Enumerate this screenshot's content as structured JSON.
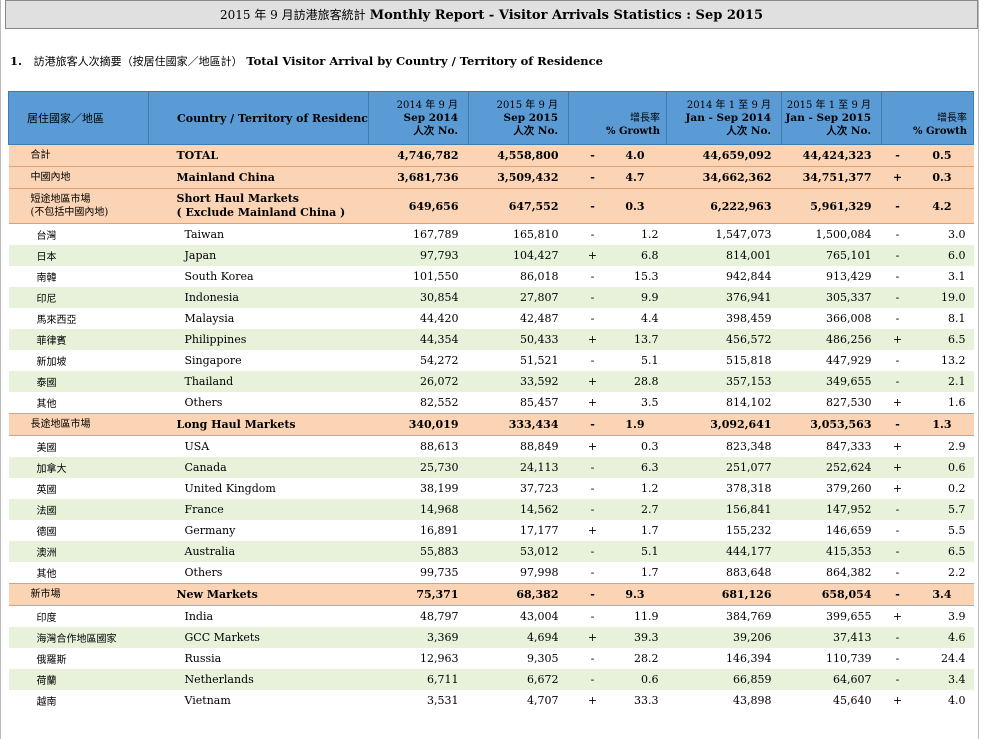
{
  "header": {
    "title_zh": "2015 年 9 月訪港旅客統計",
    "title_en": "Monthly Report - Visitor Arrivals Statistics : Sep 2015"
  },
  "section": {
    "number": "1.",
    "title_zh": "訪港旅客人次摘要（按居住國家／地區計）",
    "title_en": "Total Visitor Arrival by Country / Territory of Residence"
  },
  "table": {
    "headers": {
      "zh": "居住國家／地區",
      "en": "Country / Territory of Residence",
      "c1_zh": "2014 年 9 月",
      "c1_en": "Sep 2014",
      "c1_unit": "人次 No.",
      "c2_zh": "2015 年 9 月",
      "c2_en": "Sep 2015",
      "c2_unit": "人次 No.",
      "g1_zh": "增長率",
      "g1_en": "% Growth",
      "c3_zh": "2014 年 1 至 9 月",
      "c3_en": "Jan - Sep 2014",
      "c3_unit": "人次 No.",
      "c4_zh": "2015 年 1 至 9 月",
      "c4_en": "Jan - Sep 2015",
      "c4_unit": "人次 No.",
      "g2_zh": "增長率",
      "g2_en": "% Growth"
    },
    "rows": [
      {
        "zh": "合計",
        "en": "TOTAL",
        "v1": "4,746,782",
        "v2": "4,558,800",
        "s1": "-",
        "g1": "4.0",
        "v3": "44,659,092",
        "v4": "44,424,323",
        "s2": "-",
        "g2": "0.5"
      },
      {
        "zh": "中國內地",
        "en": "Mainland China",
        "v1": "3,681,736",
        "v2": "3,509,432",
        "s1": "-",
        "g1": "4.7",
        "v3": "34,662,362",
        "v4": "34,751,377",
        "s2": "+",
        "g2": "0.3"
      },
      {
        "zh": "短途地區市場",
        "zh2": "(不包括中國內地)",
        "en": "Short Haul Markets",
        "en2": "( Exclude Mainland China )",
        "v1": "649,656",
        "v2": "647,552",
        "s1": "-",
        "g1": "0.3",
        "v3": "6,222,963",
        "v4": "5,961,329",
        "s2": "-",
        "g2": "4.2"
      },
      {
        "zh": "台灣",
        "en": "Taiwan",
        "v1": "167,789",
        "v2": "165,810",
        "s1": "-",
        "g1": "1.2",
        "v3": "1,547,073",
        "v4": "1,500,084",
        "s2": "-",
        "g2": "3.0"
      },
      {
        "zh": "日本",
        "en": "Japan",
        "v1": "97,793",
        "v2": "104,427",
        "s1": "+",
        "g1": "6.8",
        "v3": "814,001",
        "v4": "765,101",
        "s2": "-",
        "g2": "6.0"
      },
      {
        "zh": "南韓",
        "en": "South Korea",
        "v1": "101,550",
        "v2": "86,018",
        "s1": "-",
        "g1": "15.3",
        "v3": "942,844",
        "v4": "913,429",
        "s2": "-",
        "g2": "3.1"
      },
      {
        "zh": "印尼",
        "en": "Indonesia",
        "v1": "30,854",
        "v2": "27,807",
        "s1": "-",
        "g1": "9.9",
        "v3": "376,941",
        "v4": "305,337",
        "s2": "-",
        "g2": "19.0"
      },
      {
        "zh": "馬來西亞",
        "en": "Malaysia",
        "v1": "44,420",
        "v2": "42,487",
        "s1": "-",
        "g1": "4.4",
        "v3": "398,459",
        "v4": "366,008",
        "s2": "-",
        "g2": "8.1"
      },
      {
        "zh": "菲律賓",
        "en": "Philippines",
        "v1": "44,354",
        "v2": "50,433",
        "s1": "+",
        "g1": "13.7",
        "v3": "456,572",
        "v4": "486,256",
        "s2": "+",
        "g2": "6.5"
      },
      {
        "zh": "新加坡",
        "en": "Singapore",
        "v1": "54,272",
        "v2": "51,521",
        "s1": "-",
        "g1": "5.1",
        "v3": "515,818",
        "v4": "447,929",
        "s2": "-",
        "g2": "13.2"
      },
      {
        "zh": "泰國",
        "en": "Thailand",
        "v1": "26,072",
        "v2": "33,592",
        "s1": "+",
        "g1": "28.8",
        "v3": "357,153",
        "v4": "349,655",
        "s2": "-",
        "g2": "2.1"
      },
      {
        "zh": "其他",
        "en": "Others",
        "v1": "82,552",
        "v2": "85,457",
        "s1": "+",
        "g1": "3.5",
        "v3": "814,102",
        "v4": "827,530",
        "s2": "+",
        "g2": "1.6"
      },
      {
        "zh": "長途地區市場",
        "en": "Long Haul Markets",
        "v1": "340,019",
        "v2": "333,434",
        "s1": "-",
        "g1": "1.9",
        "v3": "3,092,641",
        "v4": "3,053,563",
        "s2": "-",
        "g2": "1.3"
      },
      {
        "zh": "美國",
        "en": "USA",
        "v1": "88,613",
        "v2": "88,849",
        "s1": "+",
        "g1": "0.3",
        "v3": "823,348",
        "v4": "847,333",
        "s2": "+",
        "g2": "2.9"
      },
      {
        "zh": "加拿大",
        "en": "Canada",
        "v1": "25,730",
        "v2": "24,113",
        "s1": "-",
        "g1": "6.3",
        "v3": "251,077",
        "v4": "252,624",
        "s2": "+",
        "g2": "0.6"
      },
      {
        "zh": "英國",
        "en": "United Kingdom",
        "v1": "38,199",
        "v2": "37,723",
        "s1": "-",
        "g1": "1.2",
        "v3": "378,318",
        "v4": "379,260",
        "s2": "+",
        "g2": "0.2"
      },
      {
        "zh": "法國",
        "en": "France",
        "v1": "14,968",
        "v2": "14,562",
        "s1": "-",
        "g1": "2.7",
        "v3": "156,841",
        "v4": "147,952",
        "s2": "-",
        "g2": "5.7"
      },
      {
        "zh": "德國",
        "en": "Germany",
        "v1": "16,891",
        "v2": "17,177",
        "s1": "+",
        "g1": "1.7",
        "v3": "155,232",
        "v4": "146,659",
        "s2": "-",
        "g2": "5.5"
      },
      {
        "zh": "澳洲",
        "en": "Australia",
        "v1": "55,883",
        "v2": "53,012",
        "s1": "-",
        "g1": "5.1",
        "v3": "444,177",
        "v4": "415,353",
        "s2": "-",
        "g2": "6.5"
      },
      {
        "zh": "其他",
        "en": "Others",
        "v1": "99,735",
        "v2": "97,998",
        "s1": "-",
        "g1": "1.7",
        "v3": "883,648",
        "v4": "864,382",
        "s2": "-",
        "g2": "2.2"
      },
      {
        "zh": "新市場",
        "en": "New Markets",
        "v1": "75,371",
        "v2": "68,382",
        "s1": "-",
        "g1": "9.3",
        "v3": "681,126",
        "v4": "658,054",
        "s2": "-",
        "g2": "3.4"
      },
      {
        "zh": "印度",
        "en": "India",
        "v1": "48,797",
        "v2": "43,004",
        "s1": "-",
        "g1": "11.9",
        "v3": "384,769",
        "v4": "399,655",
        "s2": "+",
        "g2": "3.9"
      },
      {
        "zh": "海灣合作地區國家",
        "en": "GCC Markets",
        "v1": "3,369",
        "v2": "4,694",
        "s1": "+",
        "g1": "39.3",
        "v3": "39,206",
        "v4": "37,413",
        "s2": "-",
        "g2": "4.6"
      },
      {
        "zh": "俄羅斯",
        "en": "Russia",
        "v1": "12,963",
        "v2": "9,305",
        "s1": "-",
        "g1": "28.2",
        "v3": "146,394",
        "v4": "110,739",
        "s2": "-",
        "g2": "24.4"
      },
      {
        "zh": "荷蘭",
        "en": "Netherlands",
        "v1": "6,711",
        "v2": "6,672",
        "s1": "-",
        "g1": "0.6",
        "v3": "66,859",
        "v4": "64,607",
        "s2": "-",
        "g2": "3.4"
      },
      {
        "zh": "越南",
        "en": "Vietnam",
        "v1": "3,531",
        "v2": "4,707",
        "s1": "+",
        "g1": "33.3",
        "v3": "43,898",
        "v4": "45,640",
        "s2": "+",
        "g2": "4.0"
      }
    ]
  }
}
